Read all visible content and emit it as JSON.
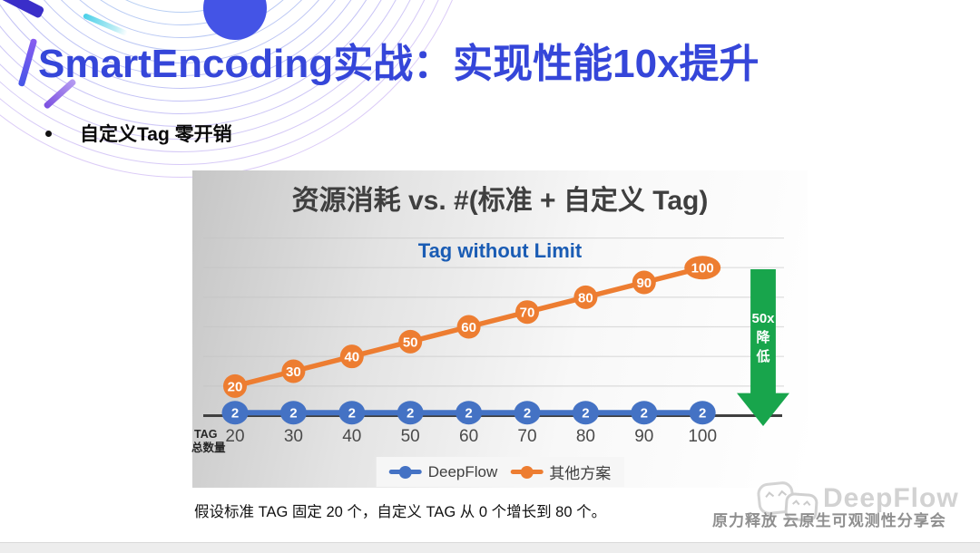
{
  "slide": {
    "title": "SmartEncoding实战：实现性能10x提升",
    "bullet": "自定义Tag 零开销",
    "caption": "假设标准 TAG 固定 20 个，自定义 TAG 从 0 个增长到 80 个。",
    "bottom_right": {
      "brand": "DeepFlow",
      "tagline": "原力释放 云原生可观测性分享会"
    }
  },
  "chart_data": {
    "type": "line",
    "title": "资源消耗 vs. #(标准 + 自定义 Tag)",
    "subtitle": "Tag without Limit",
    "x": [
      20,
      30,
      40,
      50,
      60,
      70,
      80,
      90,
      100
    ],
    "xlabel": "TAG 总数量",
    "xlabel_lines": [
      "TAG",
      "总数量"
    ],
    "series": [
      {
        "name": "DeepFlow",
        "color": "#4472C4",
        "values": [
          2,
          2,
          2,
          2,
          2,
          2,
          2,
          2,
          2
        ]
      },
      {
        "name": "其他方案",
        "color": "#ED7D31",
        "values": [
          20,
          30,
          40,
          50,
          60,
          70,
          80,
          90,
          100
        ]
      }
    ],
    "data_labels": true,
    "ylim": [
      0,
      120
    ],
    "grid": true,
    "gridline_step": 20,
    "legend_position": "bottom",
    "annotation": {
      "text_lines": [
        "50x",
        "降",
        "低"
      ],
      "color": "#18A54C"
    }
  },
  "colors": {
    "title_blue": "#3546D9",
    "chart_title_gray": "#3F3F3F",
    "subtitle_blue": "#1A5CB4",
    "deepflow_blue": "#4472C4",
    "other_orange": "#ED7D31",
    "arrow_green": "#18A54C",
    "axis_gray": "#404040"
  }
}
